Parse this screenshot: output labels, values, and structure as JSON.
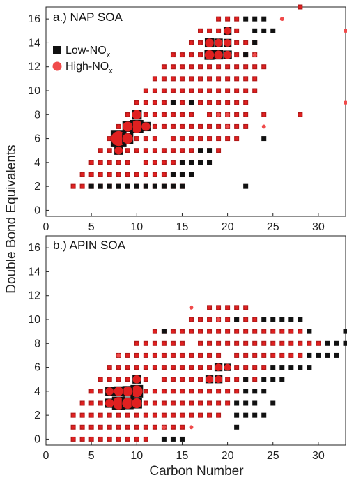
{
  "figure": {
    "xlabel": "Carbon Number",
    "ylabel": "Double Bond Equivalents",
    "legend": {
      "placement": "upper-left of top panel",
      "items": [
        {
          "label": "Low-NO",
          "sub": "x",
          "marker": "square",
          "color": "#111111"
        },
        {
          "label": "High-NO",
          "sub": "x",
          "marker": "circle",
          "color": "#f04a4a"
        }
      ]
    },
    "colors": {
      "low_nox": "#111111",
      "high_nox": "#f04a4a",
      "high_nox_overlap": "#e02020",
      "overlap_cell": "#b01818"
    }
  },
  "chart_data": [
    {
      "type": "scatter",
      "title": "a.) NAP SOA",
      "xlabel": "",
      "ylabel": "Double Bond Equivalents",
      "xlim": [
        0,
        33
      ],
      "ylim": [
        -0.5,
        17
      ],
      "xticks": [
        0,
        5,
        10,
        15,
        20,
        25,
        30
      ],
      "yticks": [
        0,
        2,
        4,
        6,
        8,
        10,
        12,
        14,
        16
      ],
      "bands": [
        {
          "y": 2,
          "x_min": 3,
          "x_max": 15
        },
        {
          "y": 3,
          "x_min": 4,
          "x_max": 16
        },
        {
          "y": 4,
          "x_min": 5,
          "x_max": 18
        },
        {
          "y": 5,
          "x_min": 6,
          "x_max": 19
        },
        {
          "y": 6,
          "x_min": 7,
          "x_max": 21
        },
        {
          "y": 7,
          "x_min": 8,
          "x_max": 22
        },
        {
          "y": 8,
          "x_min": 9,
          "x_max": 22
        },
        {
          "y": 9,
          "x_min": 10,
          "x_max": 22
        },
        {
          "y": 10,
          "x_min": 11,
          "x_max": 23
        },
        {
          "y": 11,
          "x_min": 12,
          "x_max": 23
        },
        {
          "y": 12,
          "x_min": 13,
          "x_max": 23
        },
        {
          "y": 13,
          "x_min": 14,
          "x_max": 23
        },
        {
          "y": 14,
          "x_min": 16,
          "x_max": 23
        },
        {
          "y": 15,
          "x_min": 17,
          "x_max": 21
        },
        {
          "y": 16,
          "x_min": 19,
          "x_max": 21
        }
      ],
      "low_only": [
        [
          5,
          2
        ],
        [
          6,
          2
        ],
        [
          7,
          2
        ],
        [
          8,
          2
        ],
        [
          9,
          2
        ],
        [
          10,
          2
        ],
        [
          11,
          2
        ],
        [
          12,
          2
        ],
        [
          13,
          2
        ],
        [
          14,
          2
        ],
        [
          15,
          2
        ],
        [
          14,
          3
        ],
        [
          15,
          3
        ],
        [
          16,
          3
        ],
        [
          15,
          4
        ],
        [
          16,
          4
        ],
        [
          17,
          4
        ],
        [
          18,
          4
        ],
        [
          17,
          5
        ],
        [
          18,
          5
        ],
        [
          14,
          9
        ],
        [
          16,
          9
        ],
        [
          22,
          2
        ],
        [
          23,
          14
        ],
        [
          23,
          15
        ],
        [
          24,
          15
        ],
        [
          25,
          15
        ],
        [
          22,
          16
        ],
        [
          23,
          16
        ],
        [
          24,
          16
        ],
        [
          22,
          13
        ],
        [
          24,
          6
        ]
      ],
      "high_only": [
        [
          26,
          16
        ],
        [
          33,
          15
        ],
        [
          23,
          13
        ],
        [
          19,
          8
        ],
        [
          20,
          8
        ],
        [
          20,
          7
        ],
        [
          24,
          7
        ],
        [
          33,
          9
        ]
      ],
      "extra_overlap": [
        [
          24,
          12
        ],
        [
          24,
          8
        ],
        [
          28,
          8
        ],
        [
          28,
          17
        ]
      ],
      "gaps": [
        [
          10,
          4
        ],
        [
          13,
          6
        ],
        [
          17,
          8
        ]
      ],
      "clusters": [
        {
          "x": 8,
          "y": 6,
          "size": 2.4
        },
        {
          "x": 9,
          "y": 6,
          "size": 1.7
        },
        {
          "x": 10,
          "y": 7,
          "size": 2.0
        },
        {
          "x": 9,
          "y": 7,
          "size": 1.6
        },
        {
          "x": 10,
          "y": 8,
          "size": 1.5
        },
        {
          "x": 11,
          "y": 7,
          "size": 1.4
        },
        {
          "x": 8,
          "y": 5,
          "size": 1.3
        },
        {
          "x": 18,
          "y": 13,
          "size": 1.5
        },
        {
          "x": 19,
          "y": 13,
          "size": 1.4
        },
        {
          "x": 18,
          "y": 14,
          "size": 1.4
        },
        {
          "x": 19,
          "y": 14,
          "size": 1.3
        },
        {
          "x": 20,
          "y": 13,
          "size": 1.3
        },
        {
          "x": 20,
          "y": 14,
          "size": 1.2
        },
        {
          "x": 20,
          "y": 15,
          "size": 1.2
        }
      ]
    },
    {
      "type": "scatter",
      "title": "b.) APIN SOA",
      "xlabel": "Carbon Number",
      "ylabel": "Double Bond Equivalents",
      "xlim": [
        0,
        33
      ],
      "ylim": [
        -0.5,
        17
      ],
      "xticks": [
        0,
        5,
        10,
        15,
        20,
        25,
        30
      ],
      "yticks": [
        0,
        2,
        4,
        6,
        8,
        10,
        12,
        14,
        16
      ],
      "bands": [
        {
          "y": 0,
          "x_min": 3,
          "x_max": 11
        },
        {
          "y": 1,
          "x_min": 3,
          "x_max": 15
        },
        {
          "y": 2,
          "x_min": 3,
          "x_max": 19
        },
        {
          "y": 3,
          "x_min": 4,
          "x_max": 20
        },
        {
          "y": 4,
          "x_min": 5,
          "x_max": 21
        },
        {
          "y": 5,
          "x_min": 6,
          "x_max": 23
        },
        {
          "y": 6,
          "x_min": 7,
          "x_max": 24
        },
        {
          "y": 7,
          "x_min": 8,
          "x_max": 28
        },
        {
          "y": 8,
          "x_min": 10,
          "x_max": 30
        },
        {
          "y": 9,
          "x_min": 12,
          "x_max": 28
        },
        {
          "y": 10,
          "x_min": 16,
          "x_max": 23
        },
        {
          "y": 11,
          "x_min": 18,
          "x_max": 22
        }
      ],
      "low_only": [
        [
          13,
          0
        ],
        [
          14,
          0
        ],
        [
          15,
          0
        ],
        [
          21,
          1
        ],
        [
          21,
          2
        ],
        [
          22,
          2
        ],
        [
          23,
          2
        ],
        [
          24,
          2
        ],
        [
          21,
          3
        ],
        [
          22,
          3
        ],
        [
          23,
          3
        ],
        [
          25,
          3
        ],
        [
          22,
          4
        ],
        [
          23,
          4
        ],
        [
          24,
          4
        ],
        [
          22,
          5
        ],
        [
          24,
          5
        ],
        [
          25,
          5
        ],
        [
          26,
          5
        ],
        [
          25,
          6
        ],
        [
          26,
          6
        ],
        [
          27,
          6
        ],
        [
          28,
          6
        ],
        [
          29,
          6
        ],
        [
          29,
          7
        ],
        [
          30,
          7
        ],
        [
          31,
          7
        ],
        [
          32,
          7
        ],
        [
          31,
          8
        ],
        [
          32,
          8
        ],
        [
          33,
          8
        ],
        [
          33,
          9
        ],
        [
          29,
          9
        ],
        [
          13,
          9
        ],
        [
          21,
          10
        ],
        [
          24,
          10
        ],
        [
          25,
          10
        ],
        [
          26,
          10
        ],
        [
          27,
          10
        ],
        [
          28,
          10
        ]
      ],
      "high_only": [
        [
          13,
          1
        ],
        [
          16,
          1
        ],
        [
          16,
          11
        ],
        [
          8,
          7
        ],
        [
          19,
          10
        ]
      ],
      "extra_overlap": [],
      "gaps": [
        [
          12,
          5
        ],
        [
          16,
          8
        ],
        [
          20,
          7
        ]
      ],
      "clusters": [
        {
          "x": 8,
          "y": 3,
          "size": 2.0
        },
        {
          "x": 9,
          "y": 3,
          "size": 1.8
        },
        {
          "x": 10,
          "y": 4,
          "size": 1.9
        },
        {
          "x": 9,
          "y": 4,
          "size": 1.6
        },
        {
          "x": 8,
          "y": 4,
          "size": 1.5
        },
        {
          "x": 7,
          "y": 3,
          "size": 1.4
        },
        {
          "x": 10,
          "y": 3,
          "size": 1.6
        },
        {
          "x": 7,
          "y": 4,
          "size": 1.3
        },
        {
          "x": 10,
          "y": 5,
          "size": 1.3
        },
        {
          "x": 18,
          "y": 5,
          "size": 1.2
        },
        {
          "x": 19,
          "y": 5,
          "size": 1.2
        },
        {
          "x": 19,
          "y": 6,
          "size": 1.2
        },
        {
          "x": 20,
          "y": 6,
          "size": 1.1
        }
      ]
    }
  ]
}
